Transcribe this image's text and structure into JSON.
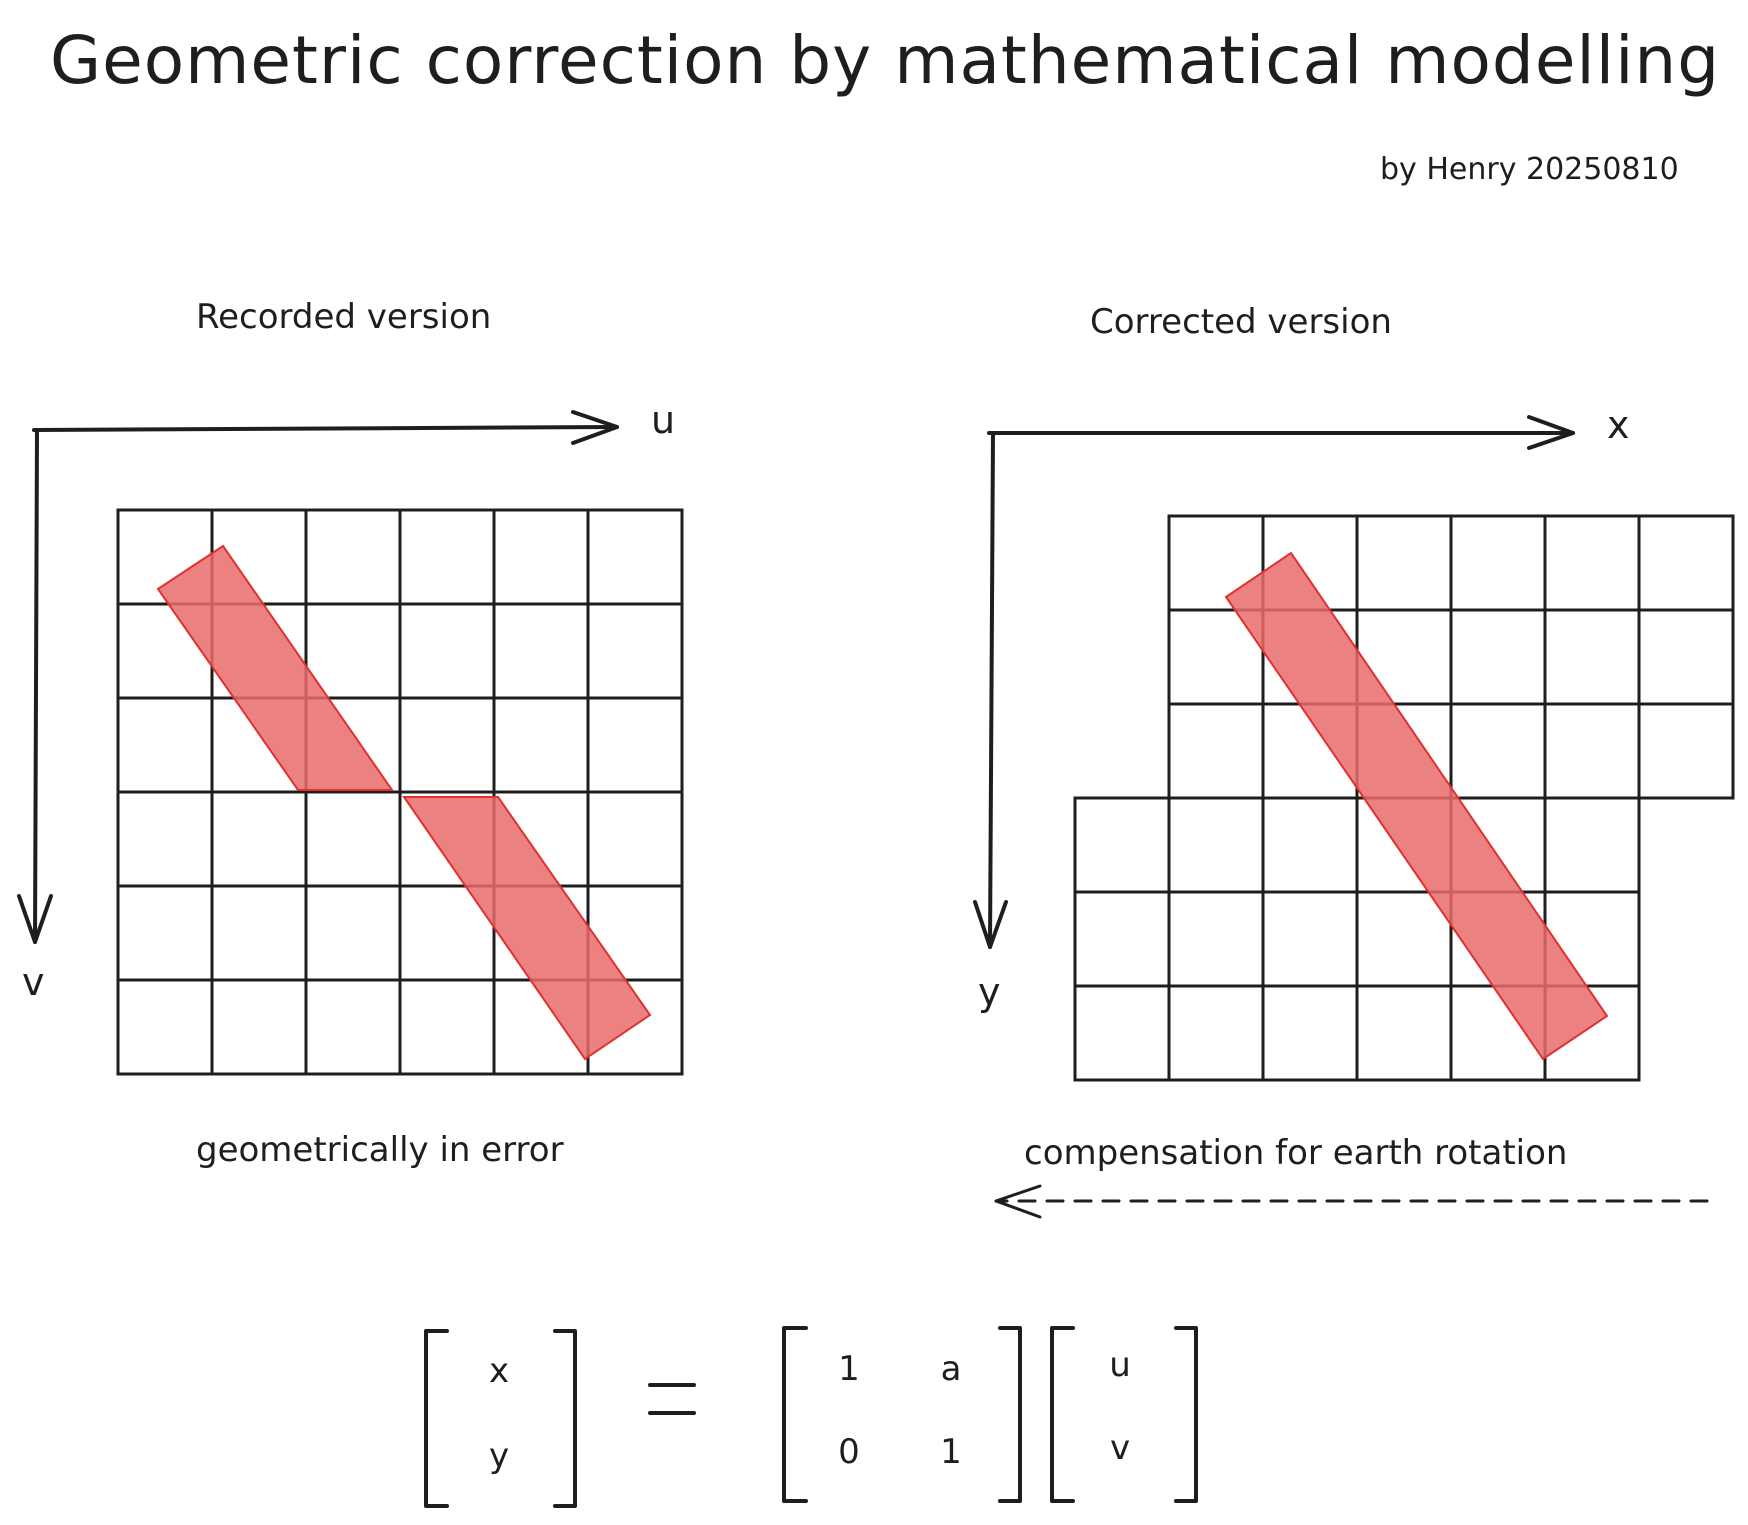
{
  "title": "Geometric correction by mathematical modelling",
  "byline": "by Henry 20250810",
  "left_panel": {
    "heading": "Recorded version",
    "axis_h": "u",
    "axis_v": "v",
    "caption": "geometrically in error",
    "grid": {
      "cols": 6,
      "rows": 6
    }
  },
  "right_panel": {
    "heading": "Corrected version",
    "axis_h": "x",
    "axis_v": "y",
    "caption": "compensation for earth rotation",
    "grid": {
      "cols": 6,
      "rows_top": 3,
      "rows_bottom": 3,
      "row_offset_cells": 1
    }
  },
  "equation": {
    "lhs": [
      "x",
      "y"
    ],
    "equals": "=",
    "matrix": [
      [
        "1",
        "a"
      ],
      [
        "0",
        "1"
      ]
    ],
    "rhs": [
      "u",
      "v"
    ]
  },
  "colors": {
    "ink": "#1e1e1e",
    "band_fill": "#e86b6b",
    "band_stroke": "#e03131"
  }
}
